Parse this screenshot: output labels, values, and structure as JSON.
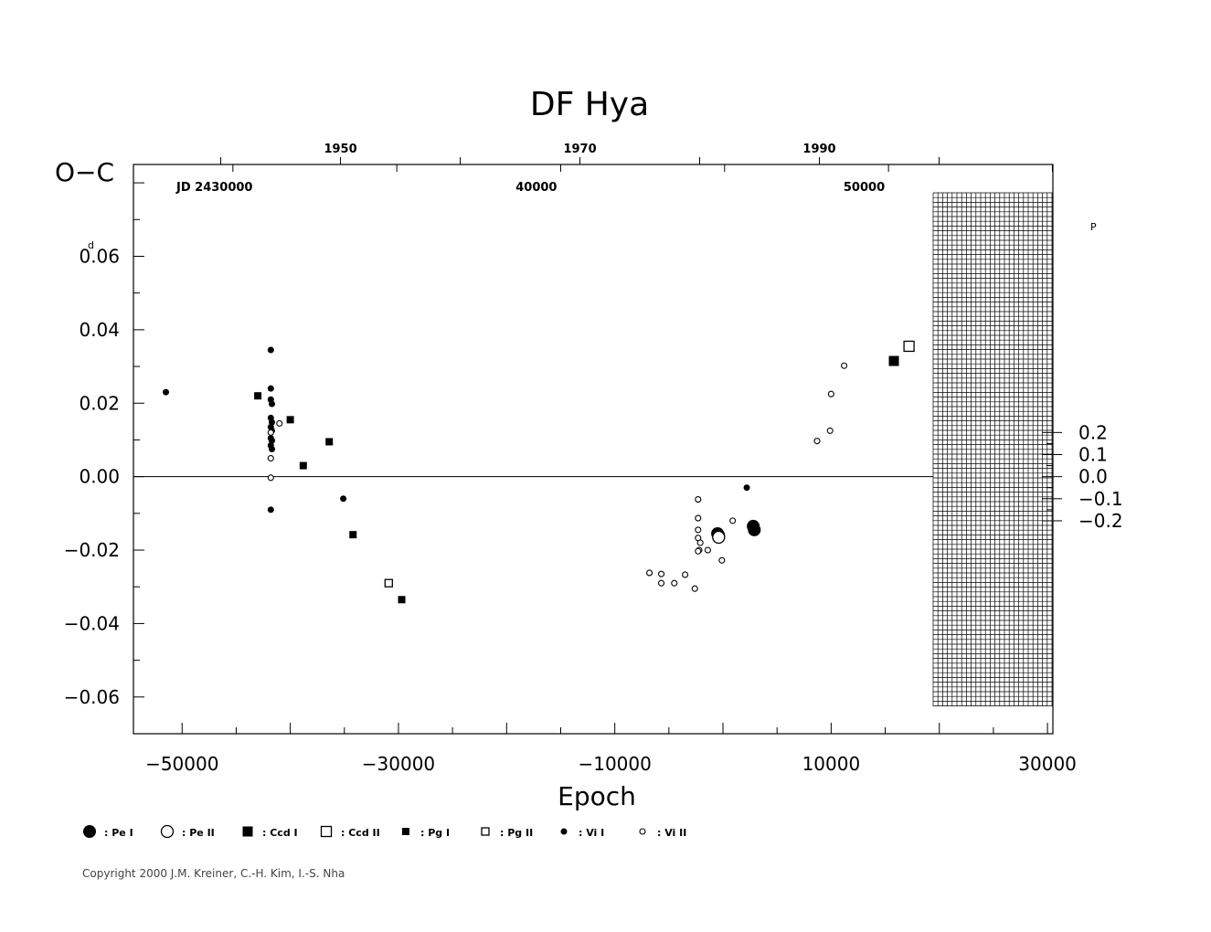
{
  "chart_data": {
    "type": "scatter",
    "title": "DF Hya",
    "xlabel": "Epoch",
    "ylabel": "O−C",
    "y_unit": "d",
    "y2_unit": "P",
    "top_axis_label": "JD 2430000",
    "xlim": [
      -54500,
      30500
    ],
    "ylim": [
      -0.07,
      0.085
    ],
    "x_ticks": [
      -50000,
      -30000,
      -10000,
      10000,
      30000
    ],
    "x_tick_labels": [
      "−50000",
      "−30000",
      "−10000",
      "10000",
      "30000"
    ],
    "y_ticks": [
      0.06,
      0.04,
      0.02,
      0.0,
      -0.02,
      -0.04,
      -0.06
    ],
    "y_tick_labels": [
      "0.06",
      "0.04",
      "0.02",
      "0.00",
      "−0.02",
      "−0.04",
      "−0.06"
    ],
    "top_year_ticks": [
      1950,
      1970,
      1990
    ],
    "top_year_labels": [
      "1950",
      "1970",
      "1990"
    ],
    "top_jd_ticks": [
      40000,
      50000
    ],
    "top_jd_labels": [
      "40000",
      "50000"
    ],
    "right_ticks": [
      0.2,
      0.1,
      0.0,
      -0.1,
      -0.2
    ],
    "right_tick_labels": [
      "0.2",
      "0.1",
      "0.0",
      "−0.1",
      "−0.2"
    ],
    "legend": [
      {
        "symbol": "pe1",
        "label": ": Pe I"
      },
      {
        "symbol": "pe2",
        "label": ": Pe II"
      },
      {
        "symbol": "ccd1",
        "label": ": Ccd I"
      },
      {
        "symbol": "ccd2",
        "label": ": Ccd II"
      },
      {
        "symbol": "pg1",
        "label": ": Pg I"
      },
      {
        "symbol": "pg2",
        "label": ": Pg II"
      },
      {
        "symbol": "vi1",
        "label": ": Vi I"
      },
      {
        "symbol": "vi2",
        "label": ": Vi II"
      }
    ],
    "series": [
      {
        "symbol": "pe1",
        "points": [
          [
            -500,
            -0.0155
          ],
          [
            -400,
            -0.016
          ],
          [
            2800,
            -0.0135
          ],
          [
            2900,
            -0.0145
          ]
        ]
      },
      {
        "symbol": "pe2",
        "points": [
          [
            -400,
            -0.0165
          ]
        ]
      },
      {
        "symbol": "ccd1",
        "points": [
          [
            15800,
            0.0315
          ]
        ]
      },
      {
        "symbol": "ccd2",
        "points": [
          [
            17200,
            0.0355
          ]
        ]
      },
      {
        "symbol": "pg1",
        "points": [
          [
            -43000,
            0.022
          ],
          [
            -40000,
            0.0155
          ],
          [
            -38800,
            0.003
          ],
          [
            -36400,
            0.0095
          ],
          [
            -34200,
            -0.0158
          ],
          [
            -29700,
            -0.0335
          ]
        ]
      },
      {
        "symbol": "pg2",
        "points": [
          [
            -30900,
            -0.029
          ]
        ]
      },
      {
        "symbol": "vi1",
        "points": [
          [
            -51500,
            0.023
          ],
          [
            -41800,
            0.0345
          ],
          [
            -41800,
            0.024
          ],
          [
            -41800,
            0.021
          ],
          [
            -41700,
            0.0198
          ],
          [
            -41800,
            0.016
          ],
          [
            -41700,
            0.0148
          ],
          [
            -41800,
            0.0135
          ],
          [
            -41700,
            0.0125
          ],
          [
            -41800,
            0.0105
          ],
          [
            -41700,
            0.0098
          ],
          [
            -41800,
            0.0085
          ],
          [
            -41700,
            0.0075
          ],
          [
            -41800,
            -0.009
          ],
          [
            -35100,
            -0.006
          ],
          [
            2200,
            -0.003
          ]
        ]
      },
      {
        "symbol": "vi2",
        "points": [
          [
            -41800,
            0.005
          ],
          [
            -41800,
            -0.0003
          ],
          [
            -41800,
            0.012
          ],
          [
            -41000,
            0.0145
          ],
          [
            -6800,
            -0.0262
          ],
          [
            -5700,
            -0.0265
          ],
          [
            -5700,
            -0.029
          ],
          [
            -4500,
            -0.029
          ],
          [
            -3500,
            -0.0267
          ],
          [
            -2600,
            -0.0305
          ],
          [
            -2300,
            -0.0062
          ],
          [
            -2300,
            -0.0113
          ],
          [
            -2300,
            -0.0145
          ],
          [
            -2300,
            -0.0167
          ],
          [
            -2100,
            -0.018
          ],
          [
            -2200,
            -0.02
          ],
          [
            -2300,
            -0.0203
          ],
          [
            -1400,
            -0.02
          ],
          [
            -100,
            -0.0228
          ],
          [
            900,
            -0.012
          ],
          [
            8700,
            0.0097
          ],
          [
            9900,
            0.0125
          ],
          [
            10000,
            0.0225
          ],
          [
            11200,
            0.0302
          ]
        ]
      }
    ]
  },
  "copyright": "Copyright 2000 J.M. Kreiner, C.-H. Kim, I.-S. Nha"
}
